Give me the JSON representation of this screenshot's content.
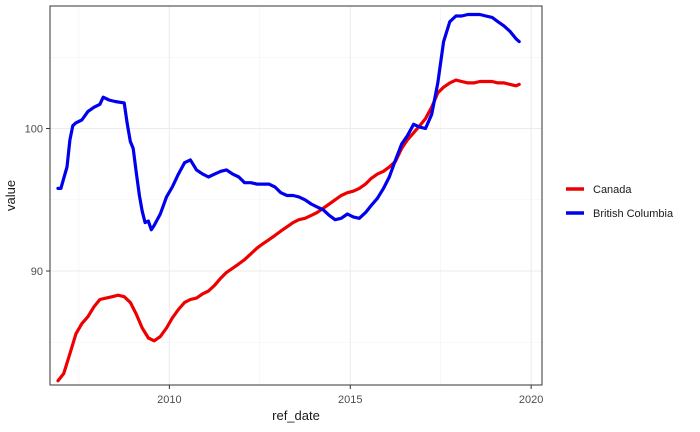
{
  "chart_data": {
    "type": "line",
    "title": "",
    "xlabel": "ref_date",
    "ylabel": "value",
    "xlim": [
      2006.7,
      2020.3
    ],
    "ylim": [
      82.0,
      108.6
    ],
    "x_ticks": [
      2010,
      2015,
      2020
    ],
    "y_ticks": [
      90,
      100
    ],
    "grid": true,
    "legend_position": "right",
    "series": [
      {
        "name": "Canada",
        "color": "#ee0000",
        "points": [
          [
            2006.92,
            82.3
          ],
          [
            2007.08,
            82.8
          ],
          [
            2007.25,
            84.2
          ],
          [
            2007.42,
            85.6
          ],
          [
            2007.58,
            86.3
          ],
          [
            2007.75,
            86.8
          ],
          [
            2007.92,
            87.5
          ],
          [
            2008.08,
            88.0
          ],
          [
            2008.25,
            88.1
          ],
          [
            2008.42,
            88.2
          ],
          [
            2008.58,
            88.3
          ],
          [
            2008.75,
            88.2
          ],
          [
            2008.92,
            87.8
          ],
          [
            2009.08,
            87.0
          ],
          [
            2009.25,
            86.0
          ],
          [
            2009.42,
            85.3
          ],
          [
            2009.58,
            85.1
          ],
          [
            2009.75,
            85.4
          ],
          [
            2009.92,
            86.0
          ],
          [
            2010.08,
            86.7
          ],
          [
            2010.25,
            87.3
          ],
          [
            2010.42,
            87.8
          ],
          [
            2010.58,
            88.0
          ],
          [
            2010.75,
            88.1
          ],
          [
            2010.92,
            88.4
          ],
          [
            2011.08,
            88.6
          ],
          [
            2011.25,
            89.0
          ],
          [
            2011.42,
            89.5
          ],
          [
            2011.58,
            89.9
          ],
          [
            2011.75,
            90.2
          ],
          [
            2011.92,
            90.5
          ],
          [
            2012.08,
            90.8
          ],
          [
            2012.25,
            91.2
          ],
          [
            2012.42,
            91.6
          ],
          [
            2012.58,
            91.9
          ],
          [
            2012.75,
            92.2
          ],
          [
            2012.92,
            92.5
          ],
          [
            2013.08,
            92.8
          ],
          [
            2013.25,
            93.1
          ],
          [
            2013.42,
            93.4
          ],
          [
            2013.58,
            93.6
          ],
          [
            2013.75,
            93.7
          ],
          [
            2013.92,
            93.9
          ],
          [
            2014.08,
            94.1
          ],
          [
            2014.25,
            94.4
          ],
          [
            2014.42,
            94.7
          ],
          [
            2014.58,
            95.0
          ],
          [
            2014.75,
            95.3
          ],
          [
            2014.92,
            95.5
          ],
          [
            2015.08,
            95.6
          ],
          [
            2015.25,
            95.8
          ],
          [
            2015.42,
            96.1
          ],
          [
            2015.58,
            96.5
          ],
          [
            2015.75,
            96.8
          ],
          [
            2015.92,
            97.0
          ],
          [
            2016.08,
            97.3
          ],
          [
            2016.25,
            97.7
          ],
          [
            2016.42,
            98.6
          ],
          [
            2016.58,
            99.2
          ],
          [
            2016.75,
            99.7
          ],
          [
            2016.92,
            100.2
          ],
          [
            2017.08,
            100.7
          ],
          [
            2017.25,
            101.5
          ],
          [
            2017.42,
            102.5
          ],
          [
            2017.58,
            102.9
          ],
          [
            2017.75,
            103.2
          ],
          [
            2017.92,
            103.4
          ],
          [
            2018.08,
            103.3
          ],
          [
            2018.25,
            103.2
          ],
          [
            2018.42,
            103.2
          ],
          [
            2018.58,
            103.3
          ],
          [
            2018.75,
            103.3
          ],
          [
            2018.92,
            103.3
          ],
          [
            2019.08,
            103.2
          ],
          [
            2019.25,
            103.2
          ],
          [
            2019.42,
            103.1
          ],
          [
            2019.58,
            103.0
          ],
          [
            2019.67,
            103.1
          ]
        ]
      },
      {
        "name": "British Columbia",
        "color": "#0000ee",
        "points": [
          [
            2006.92,
            95.8
          ],
          [
            2007.0,
            95.8
          ],
          [
            2007.08,
            96.5
          ],
          [
            2007.17,
            97.3
          ],
          [
            2007.25,
            99.2
          ],
          [
            2007.33,
            100.2
          ],
          [
            2007.42,
            100.4
          ],
          [
            2007.58,
            100.6
          ],
          [
            2007.75,
            101.2
          ],
          [
            2007.92,
            101.5
          ],
          [
            2008.08,
            101.7
          ],
          [
            2008.17,
            102.2
          ],
          [
            2008.33,
            102.0
          ],
          [
            2008.5,
            101.9
          ],
          [
            2008.75,
            101.8
          ],
          [
            2008.83,
            100.4
          ],
          [
            2008.92,
            99.1
          ],
          [
            2009.0,
            98.6
          ],
          [
            2009.08,
            97.0
          ],
          [
            2009.17,
            95.3
          ],
          [
            2009.25,
            94.2
          ],
          [
            2009.33,
            93.4
          ],
          [
            2009.42,
            93.5
          ],
          [
            2009.5,
            92.9
          ],
          [
            2009.58,
            93.2
          ],
          [
            2009.75,
            94.0
          ],
          [
            2009.92,
            95.2
          ],
          [
            2010.08,
            95.9
          ],
          [
            2010.25,
            96.8
          ],
          [
            2010.42,
            97.6
          ],
          [
            2010.58,
            97.8
          ],
          [
            2010.75,
            97.1
          ],
          [
            2010.92,
            96.8
          ],
          [
            2011.08,
            96.6
          ],
          [
            2011.25,
            96.8
          ],
          [
            2011.42,
            97.0
          ],
          [
            2011.58,
            97.1
          ],
          [
            2011.75,
            96.8
          ],
          [
            2011.92,
            96.6
          ],
          [
            2012.08,
            96.2
          ],
          [
            2012.25,
            96.2
          ],
          [
            2012.42,
            96.1
          ],
          [
            2012.58,
            96.1
          ],
          [
            2012.75,
            96.1
          ],
          [
            2012.92,
            95.9
          ],
          [
            2013.08,
            95.5
          ],
          [
            2013.25,
            95.3
          ],
          [
            2013.42,
            95.3
          ],
          [
            2013.58,
            95.2
          ],
          [
            2013.75,
            95.0
          ],
          [
            2013.92,
            94.7
          ],
          [
            2014.08,
            94.5
          ],
          [
            2014.25,
            94.3
          ],
          [
            2014.42,
            93.9
          ],
          [
            2014.58,
            93.6
          ],
          [
            2014.75,
            93.7
          ],
          [
            2014.92,
            94.0
          ],
          [
            2015.08,
            93.8
          ],
          [
            2015.25,
            93.7
          ],
          [
            2015.42,
            94.1
          ],
          [
            2015.58,
            94.6
          ],
          [
            2015.75,
            95.1
          ],
          [
            2015.92,
            95.8
          ],
          [
            2016.08,
            96.6
          ],
          [
            2016.25,
            97.8
          ],
          [
            2016.42,
            98.9
          ],
          [
            2016.58,
            99.5
          ],
          [
            2016.75,
            100.3
          ],
          [
            2016.92,
            100.1
          ],
          [
            2017.08,
            100.0
          ],
          [
            2017.25,
            101.0
          ],
          [
            2017.42,
            103.2
          ],
          [
            2017.58,
            106.1
          ],
          [
            2017.75,
            107.5
          ],
          [
            2017.92,
            107.9
          ],
          [
            2018.08,
            107.9
          ],
          [
            2018.25,
            108.0
          ],
          [
            2018.42,
            108.0
          ],
          [
            2018.58,
            108.0
          ],
          [
            2018.75,
            107.9
          ],
          [
            2018.92,
            107.8
          ],
          [
            2019.08,
            107.5
          ],
          [
            2019.25,
            107.2
          ],
          [
            2019.42,
            106.8
          ],
          [
            2019.58,
            106.3
          ],
          [
            2019.67,
            106.1
          ]
        ]
      }
    ]
  }
}
